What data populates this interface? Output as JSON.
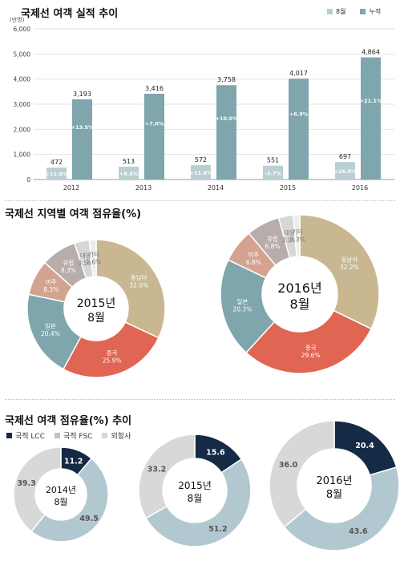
{
  "colors": {
    "bar": "#7fa6ac",
    "southeast": "#c8b790",
    "china": "#e06552",
    "japan": "#7fa6ac",
    "americas": "#d4a38f",
    "europe": "#b8adab",
    "taiwan": "#d6d6d6",
    "other": "#ececec",
    "lcc": "#152a45",
    "fsc": "#b2c8d0",
    "foreign": "#d8d8d8"
  },
  "chart_data": [
    {
      "type": "bar",
      "title": "국제선 여객 실적 추이",
      "ylabel": "(만명)",
      "ylim": [
        0,
        6000
      ],
      "yticks": [
        "0",
        "1,000",
        "2,000",
        "3,000",
        "4,000",
        "5,000",
        "6,000"
      ],
      "categories": [
        "2012",
        "2013",
        "2014",
        "2015",
        "2016"
      ],
      "legend": [
        "8월",
        "누적"
      ],
      "series": [
        {
          "name": "8월",
          "values": [
            472,
            513,
            572,
            551,
            697
          ],
          "value_labels": [
            "472",
            "513",
            "572",
            "551",
            "697"
          ],
          "growth_labels": [
            "+11.6%",
            "+8.5%",
            "+11.6%",
            "-3.7%",
            "+26.5%"
          ]
        },
        {
          "name": "누적",
          "values": [
            3193,
            3416,
            3758,
            4017,
            4864
          ],
          "value_labels": [
            "3,193",
            "3,416",
            "3,758",
            "4,017",
            "4,864"
          ],
          "growth_labels": [
            "+13.5%",
            "+7.0%",
            "+10.0%",
            "+6.9%",
            "+21.1%"
          ]
        }
      ]
    },
    {
      "type": "pie",
      "title": "국제선 지역별 여객 점유율(%)",
      "charts": [
        {
          "center_year": "2015년",
          "center_month": "8월",
          "slices": [
            {
              "label": "동남아",
              "value_label": "32.0%",
              "value": 32.0,
              "key": "southeast"
            },
            {
              "label": "중국",
              "value_label": "25.9%",
              "value": 25.9,
              "key": "china"
            },
            {
              "label": "일본",
              "value_label": "20.4%",
              "value": 20.4,
              "key": "japan"
            },
            {
              "label": "미주",
              "value_label": "8.3%",
              "value": 8.3,
              "key": "americas"
            },
            {
              "label": "유럽",
              "value_label": "8.3%",
              "value": 8.3,
              "key": "europe"
            },
            {
              "label": "대양",
              "value_label": "3.5%",
              "value": 3.5,
              "key": "taiwan"
            },
            {
              "label": "기타",
              "value_label": "1.6%",
              "value": 1.6,
              "key": "other"
            }
          ]
        },
        {
          "center_year": "2016년",
          "center_month": "8월",
          "slices": [
            {
              "label": "동남아",
              "value_label": "32.2%",
              "value": 32.2,
              "key": "southeast"
            },
            {
              "label": "중국",
              "value_label": "29.6%",
              "value": 29.6,
              "key": "china"
            },
            {
              "label": "일본",
              "value_label": "20.3%",
              "value": 20.3,
              "key": "japan"
            },
            {
              "label": "미주",
              "value_label": "6.8%",
              "value": 6.8,
              "key": "americas"
            },
            {
              "label": "유럽",
              "value_label": "6.8%",
              "value": 6.8,
              "key": "europe"
            },
            {
              "label": "대양",
              "value_label": "3.0%",
              "value": 3.0,
              "key": "taiwan"
            },
            {
              "label": "기타",
              "value_label": "1.3%",
              "value": 1.3,
              "key": "other"
            }
          ]
        }
      ]
    },
    {
      "type": "pie",
      "title": "국제선 여객 점유율(%) 추이",
      "legend": [
        {
          "name": "국적 LCC",
          "key": "lcc"
        },
        {
          "name": "국적 FSC",
          "key": "fsc"
        },
        {
          "name": "외항사",
          "key": "foreign"
        }
      ],
      "charts": [
        {
          "center_year": "2014년",
          "center_month": "8월",
          "slices": [
            {
              "value_label": "11.2",
              "value": 11.2,
              "key": "lcc"
            },
            {
              "value_label": "49.5",
              "value": 49.5,
              "key": "fsc"
            },
            {
              "value_label": "39.3",
              "value": 39.3,
              "key": "foreign"
            }
          ]
        },
        {
          "center_year": "2015년",
          "center_month": "8월",
          "slices": [
            {
              "value_label": "15.6",
              "value": 15.6,
              "key": "lcc"
            },
            {
              "value_label": "51.2",
              "value": 51.2,
              "key": "fsc"
            },
            {
              "value_label": "33.2",
              "value": 33.2,
              "key": "foreign"
            }
          ]
        },
        {
          "center_year": "2016년",
          "center_month": "8월",
          "slices": [
            {
              "value_label": "20.4",
              "value": 20.4,
              "key": "lcc"
            },
            {
              "value_label": "43.6",
              "value": 43.6,
              "key": "fsc"
            },
            {
              "value_label": "36.0",
              "value": 36.0,
              "key": "foreign"
            }
          ]
        }
      ]
    }
  ]
}
